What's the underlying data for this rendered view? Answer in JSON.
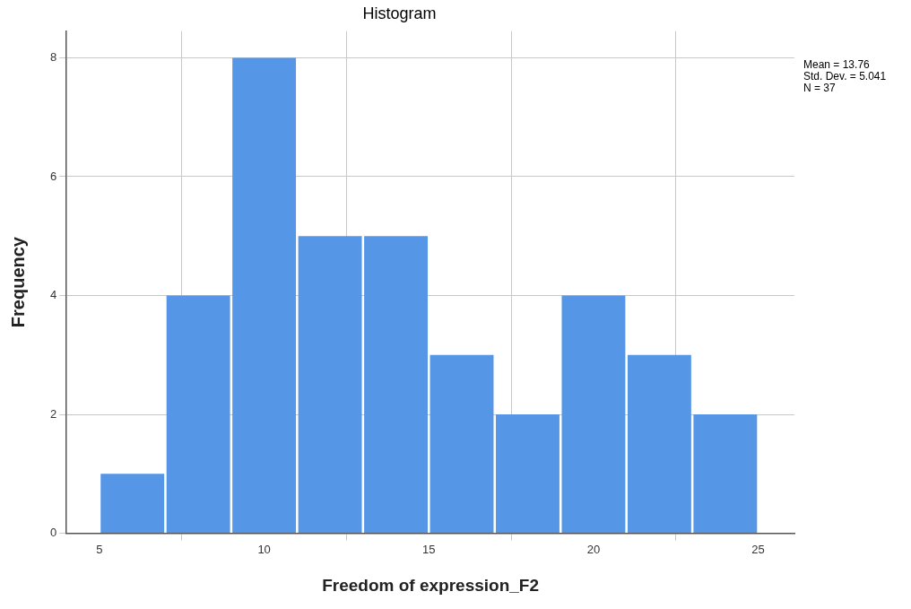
{
  "chart_data": {
    "type": "histogram",
    "title": "Histogram",
    "xlabel": "Freedom of expression_F2",
    "ylabel": "Frequency",
    "bins": [
      5,
      7,
      9,
      11,
      13,
      15,
      17,
      19,
      21,
      23,
      25
    ],
    "values": [
      1,
      4,
      8,
      5,
      5,
      3,
      2,
      4,
      3,
      2
    ],
    "color": "#5596e6",
    "xlim": [
      4,
      26.1
    ],
    "xticks": [
      5,
      10,
      15,
      20,
      25
    ],
    "ylim": [
      0,
      8.45
    ],
    "yticks": [
      0,
      2,
      4,
      6,
      8
    ],
    "grid": true,
    "legend": false,
    "annotations": [
      "Mean = 13.76",
      "Std. Dev. = 5.041",
      "N = 37"
    ]
  }
}
